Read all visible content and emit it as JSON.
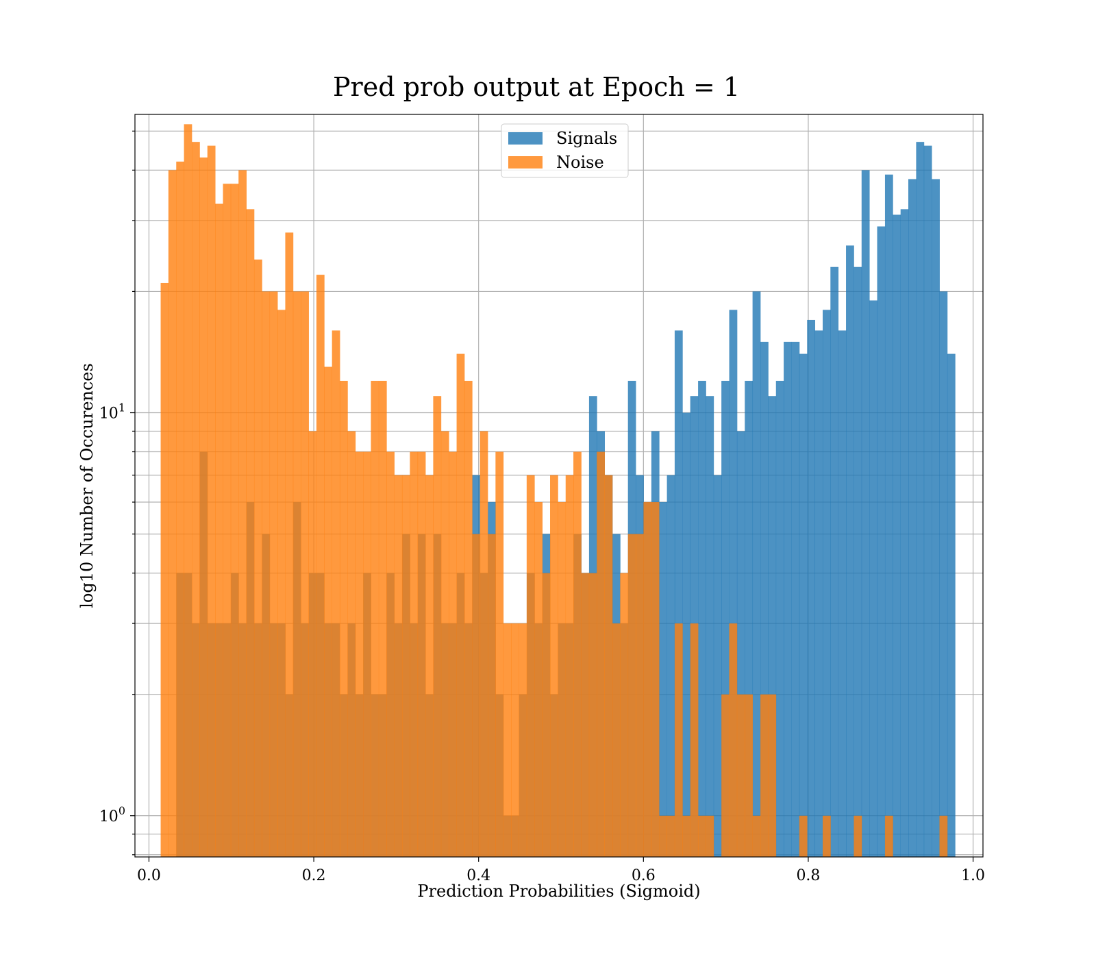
{
  "chart_data": {
    "type": "bar",
    "title": "Pred prob output at Epoch = 1",
    "xlabel": "Prediction Probabilities (Sigmoid)",
    "ylabel": "log10 Number of Occurences",
    "yscale": "log",
    "xlim": [
      -0.017,
      1.012
    ],
    "ylim": [
      0.79,
      55
    ],
    "x_ticks": [
      {
        "value": 0.0,
        "label": "0.0"
      },
      {
        "value": 0.2,
        "label": "0.2"
      },
      {
        "value": 0.4,
        "label": "0.4"
      },
      {
        "value": 0.6,
        "label": "0.6"
      },
      {
        "value": 0.8,
        "label": "0.8"
      },
      {
        "value": 1.0,
        "label": "1.0"
      }
    ],
    "y_ticks": [
      {
        "value": 1,
        "base": "10",
        "exp": "0"
      },
      {
        "value": 10,
        "base": "10",
        "exp": "1"
      }
    ],
    "grid": true,
    "legend": {
      "position": "top-center"
    },
    "bin_width": 0.00945,
    "series": [
      {
        "name": "Signals",
        "color": "#1f77b4",
        "alpha": 0.8,
        "bins": [
          [
            0.0331,
            4
          ],
          [
            0.0426,
            4
          ],
          [
            0.052,
            3
          ],
          [
            0.0615,
            8
          ],
          [
            0.0709,
            3
          ],
          [
            0.0804,
            3
          ],
          [
            0.0898,
            3
          ],
          [
            0.0993,
            4
          ],
          [
            0.1087,
            3
          ],
          [
            0.1182,
            6
          ],
          [
            0.1276,
            3
          ],
          [
            0.1371,
            5
          ],
          [
            0.1465,
            3
          ],
          [
            0.156,
            3
          ],
          [
            0.1654,
            2
          ],
          [
            0.1749,
            6
          ],
          [
            0.1843,
            3
          ],
          [
            0.1938,
            4
          ],
          [
            0.2032,
            4
          ],
          [
            0.2127,
            3
          ],
          [
            0.2221,
            3
          ],
          [
            0.2316,
            2
          ],
          [
            0.241,
            3
          ],
          [
            0.2505,
            2
          ],
          [
            0.2599,
            4
          ],
          [
            0.2694,
            2
          ],
          [
            0.2788,
            2
          ],
          [
            0.2883,
            4
          ],
          [
            0.2977,
            3
          ],
          [
            0.3072,
            5
          ],
          [
            0.3166,
            3
          ],
          [
            0.3261,
            5
          ],
          [
            0.3355,
            2
          ],
          [
            0.345,
            5
          ],
          [
            0.3544,
            3
          ],
          [
            0.3639,
            3
          ],
          [
            0.3733,
            4
          ],
          [
            0.3828,
            3
          ],
          [
            0.3922,
            7
          ],
          [
            0.4017,
            4
          ],
          [
            0.4111,
            6
          ],
          [
            0.4206,
            2
          ],
          [
            0.43,
            1
          ],
          [
            0.4395,
            1
          ],
          [
            0.4489,
            2
          ],
          [
            0.4584,
            4
          ],
          [
            0.4678,
            3
          ],
          [
            0.4773,
            5
          ],
          [
            0.4867,
            2
          ],
          [
            0.4962,
            3
          ],
          [
            0.5056,
            3
          ],
          [
            0.5151,
            5
          ],
          [
            0.5245,
            4
          ],
          [
            0.534,
            11
          ],
          [
            0.5434,
            9
          ],
          [
            0.5529,
            7
          ],
          [
            0.5623,
            5
          ],
          [
            0.5718,
            3
          ],
          [
            0.5812,
            12
          ],
          [
            0.5907,
            7
          ],
          [
            0.6001,
            6
          ],
          [
            0.6096,
            9
          ],
          [
            0.619,
            6
          ],
          [
            0.6285,
            7
          ],
          [
            0.6379,
            16
          ],
          [
            0.6474,
            10
          ],
          [
            0.6568,
            11
          ],
          [
            0.6663,
            12
          ],
          [
            0.6757,
            11
          ],
          [
            0.6852,
            7
          ],
          [
            0.6946,
            12
          ],
          [
            0.7041,
            18
          ],
          [
            0.7135,
            9
          ],
          [
            0.723,
            12
          ],
          [
            0.7324,
            20
          ],
          [
            0.7419,
            15
          ],
          [
            0.7513,
            11
          ],
          [
            0.7608,
            12
          ],
          [
            0.7702,
            15
          ],
          [
            0.7797,
            15
          ],
          [
            0.7891,
            14
          ],
          [
            0.7986,
            17
          ],
          [
            0.808,
            16
          ],
          [
            0.8175,
            18
          ],
          [
            0.8269,
            23
          ],
          [
            0.8364,
            16
          ],
          [
            0.8458,
            26
          ],
          [
            0.8553,
            23
          ],
          [
            0.8647,
            40
          ],
          [
            0.8742,
            19
          ],
          [
            0.8836,
            29
          ],
          [
            0.8931,
            39
          ],
          [
            0.9025,
            31
          ],
          [
            0.912,
            32
          ],
          [
            0.9214,
            38
          ],
          [
            0.9309,
            47
          ],
          [
            0.9403,
            46
          ],
          [
            0.9498,
            38
          ],
          [
            0.9592,
            20
          ],
          [
            0.9687,
            14
          ]
        ]
      },
      {
        "name": "Noise",
        "color": "#ff7f0e",
        "alpha": 0.8,
        "bins": [
          [
            0.0142,
            21
          ],
          [
            0.0236,
            40
          ],
          [
            0.0331,
            42
          ],
          [
            0.0425,
            52
          ],
          [
            0.052,
            47
          ],
          [
            0.0614,
            43
          ],
          [
            0.0709,
            46
          ],
          [
            0.0803,
            33
          ],
          [
            0.0898,
            37
          ],
          [
            0.0992,
            37
          ],
          [
            0.1087,
            40
          ],
          [
            0.1181,
            32
          ],
          [
            0.1276,
            24
          ],
          [
            0.137,
            20
          ],
          [
            0.1465,
            20
          ],
          [
            0.1559,
            18
          ],
          [
            0.1654,
            28
          ],
          [
            0.1748,
            20
          ],
          [
            0.1843,
            20
          ],
          [
            0.1937,
            9
          ],
          [
            0.2032,
            22
          ],
          [
            0.2126,
            13
          ],
          [
            0.2221,
            16
          ],
          [
            0.2315,
            12
          ],
          [
            0.241,
            9
          ],
          [
            0.2504,
            8
          ],
          [
            0.2599,
            8
          ],
          [
            0.2693,
            12
          ],
          [
            0.2788,
            12
          ],
          [
            0.2882,
            8
          ],
          [
            0.2977,
            7
          ],
          [
            0.3071,
            7
          ],
          [
            0.3166,
            8
          ],
          [
            0.326,
            8
          ],
          [
            0.3355,
            7
          ],
          [
            0.3449,
            11
          ],
          [
            0.3544,
            9
          ],
          [
            0.3638,
            8
          ],
          [
            0.3733,
            14
          ],
          [
            0.3827,
            12
          ],
          [
            0.3922,
            5
          ],
          [
            0.4016,
            9
          ],
          [
            0.4111,
            5
          ],
          [
            0.4205,
            8
          ],
          [
            0.43,
            3
          ],
          [
            0.4394,
            3
          ],
          [
            0.4489,
            3
          ],
          [
            0.4583,
            7
          ],
          [
            0.4678,
            6
          ],
          [
            0.4772,
            4
          ],
          [
            0.4867,
            7
          ],
          [
            0.4961,
            6
          ],
          [
            0.5056,
            7
          ],
          [
            0.515,
            8
          ],
          [
            0.5245,
            4
          ],
          [
            0.5339,
            4
          ],
          [
            0.5434,
            8
          ],
          [
            0.5528,
            7
          ],
          [
            0.5623,
            3
          ],
          [
            0.5717,
            4
          ],
          [
            0.5812,
            5
          ],
          [
            0.5906,
            5
          ],
          [
            0.6001,
            6
          ],
          [
            0.6095,
            6
          ],
          [
            0.619,
            1
          ],
          [
            0.6284,
            1
          ],
          [
            0.6379,
            3
          ],
          [
            0.6473,
            1
          ],
          [
            0.6568,
            3
          ],
          [
            0.6662,
            1
          ],
          [
            0.6757,
            1
          ],
          [
            0.6946,
            2
          ],
          [
            0.704,
            3
          ],
          [
            0.7135,
            2
          ],
          [
            0.7229,
            2
          ],
          [
            0.7324,
            1
          ],
          [
            0.7419,
            2
          ],
          [
            0.7513,
            2
          ],
          [
            0.7891,
            1
          ],
          [
            0.8175,
            1
          ],
          [
            0.8553,
            1
          ],
          [
            0.8931,
            1
          ],
          [
            0.9592,
            1
          ]
        ]
      }
    ]
  }
}
